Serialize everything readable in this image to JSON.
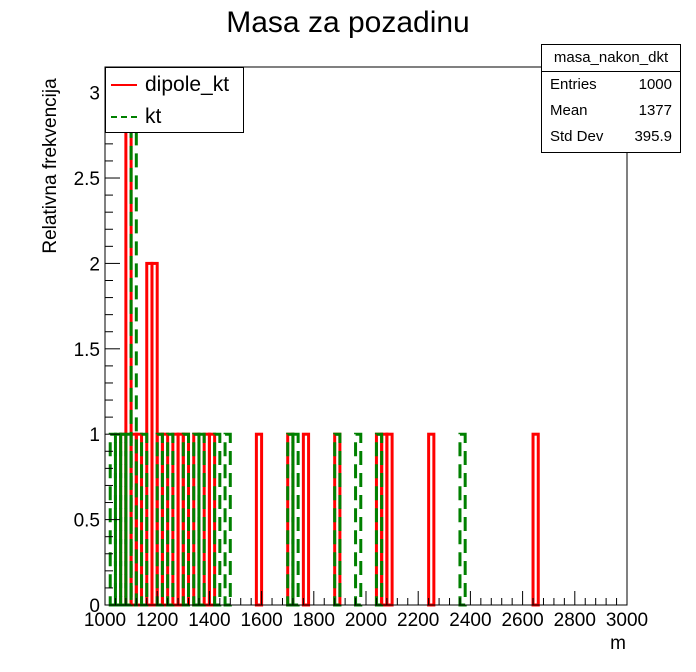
{
  "chart_data": {
    "type": "histogram",
    "title": "Masa za pozadinu",
    "xlabel": "m",
    "ylabel": "Relativna frekvencija",
    "xlim": [
      1000,
      3000
    ],
    "ylim": [
      0,
      3.15
    ],
    "xticks": [
      "1000",
      "1200",
      "1400",
      "1600",
      "1800",
      "2000",
      "2200",
      "2400",
      "2600",
      "2800",
      "3000"
    ],
    "yticks": [
      "0",
      "0.5",
      "1",
      "1.5",
      "2",
      "2.5",
      "3"
    ],
    "bin_width": 20,
    "series": [
      {
        "name": "dipole_kt",
        "color": "#ff0000",
        "style": "solid",
        "bins": [
          [
            1060,
            1
          ],
          [
            1080,
            3
          ],
          [
            1100,
            1
          ],
          [
            1120,
            1
          ],
          [
            1160,
            2
          ],
          [
            1180,
            2
          ],
          [
            1200,
            1
          ],
          [
            1220,
            1
          ],
          [
            1260,
            1
          ],
          [
            1280,
            1
          ],
          [
            1300,
            1
          ],
          [
            1340,
            1
          ],
          [
            1380,
            1
          ],
          [
            1400,
            1
          ],
          [
            1580,
            1
          ],
          [
            1700,
            1
          ],
          [
            1760,
            1
          ],
          [
            1880,
            1
          ],
          [
            2040,
            1
          ],
          [
            2060,
            1
          ],
          [
            2080,
            1
          ],
          [
            2240,
            1
          ],
          [
            2640,
            1
          ]
        ]
      },
      {
        "name": "kt",
        "color": "#008000",
        "style": "dashed",
        "bins": [
          [
            1020,
            1
          ],
          [
            1040,
            1
          ],
          [
            1060,
            1
          ],
          [
            1080,
            1
          ],
          [
            1100,
            3
          ],
          [
            1140,
            1
          ],
          [
            1200,
            1
          ],
          [
            1240,
            1
          ],
          [
            1300,
            1
          ],
          [
            1340,
            1
          ],
          [
            1360,
            1
          ],
          [
            1420,
            1
          ],
          [
            1460,
            1
          ],
          [
            1700,
            1
          ],
          [
            1720,
            1
          ],
          [
            1880,
            1
          ],
          [
            1960,
            1
          ],
          [
            2040,
            1
          ],
          [
            2360,
            1
          ]
        ]
      }
    ],
    "legend_position": "top-left"
  },
  "stats": {
    "name": "masa_nakon_dkt",
    "rows": [
      {
        "label": "Entries",
        "value": "1000"
      },
      {
        "label": "Mean",
        "value": "1377"
      },
      {
        "label": "Std Dev",
        "value": "395.9"
      }
    ]
  },
  "legend": {
    "items": [
      {
        "label": "dipole_kt",
        "color": "#ff0000",
        "style": "solid"
      },
      {
        "label": "kt",
        "color": "#008000",
        "style": "dashed"
      }
    ]
  }
}
